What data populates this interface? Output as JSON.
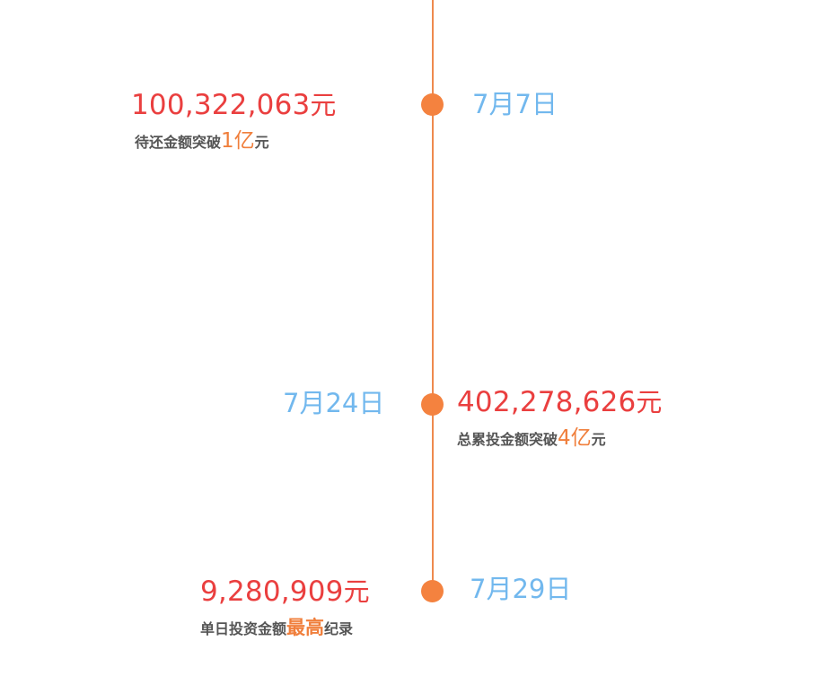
{
  "events": [
    {
      "date": "7月7日",
      "amount": "100,322,063",
      "amount_unit": "元",
      "caption_before": "待还金额突破",
      "caption_highlight": "1亿",
      "caption_after": "元"
    },
    {
      "date": "7月24日",
      "amount": "402,278,626",
      "amount_unit": "元",
      "caption_before": "总累投金额突破",
      "caption_highlight": "4亿",
      "caption_after": "元"
    },
    {
      "date": "7月29日",
      "amount": "9,280,909",
      "amount_unit": "元",
      "caption_before": "单日投资金额",
      "caption_highlight": "最高",
      "caption_after": "纪录"
    }
  ],
  "colors": {
    "line": "#ee8a4e",
    "dot": "#f4823f",
    "amount": "#ea3f3f",
    "date": "#72b8ee",
    "highlight": "#f07f3c",
    "caption": "#555555"
  }
}
